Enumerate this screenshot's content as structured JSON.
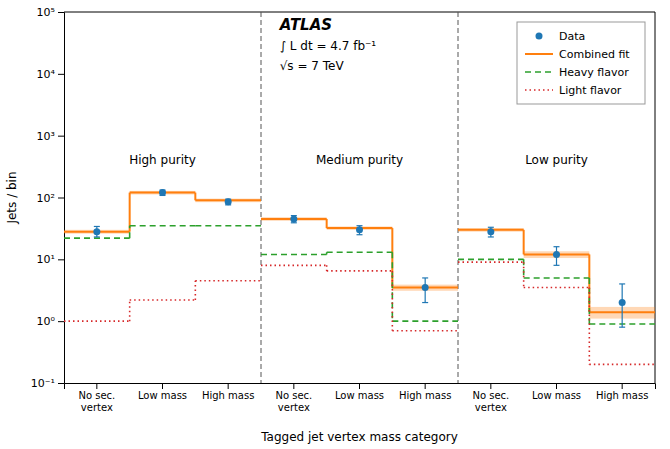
{
  "chart_data": {
    "type": "step",
    "xlabel": "Tagged jet vertex mass category",
    "ylabel": "Jets / bin",
    "log": "y",
    "ylim": [
      0.1,
      100000
    ],
    "yticks": [
      {
        "value": 0.1,
        "label": "10⁻¹"
      },
      {
        "value": 1,
        "label": "10⁰"
      },
      {
        "value": 10,
        "label": "10¹"
      },
      {
        "value": 100,
        "label": "10²"
      },
      {
        "value": 1000,
        "label": "10³"
      },
      {
        "value": 10000,
        "label": "10⁴"
      },
      {
        "value": 100000,
        "label": "10⁵"
      }
    ],
    "grid": false,
    "legend": "upper right",
    "categories": [
      "No sec.\nvertex",
      "Low mass",
      "High mass",
      "No sec.\nvertex",
      "Low mass",
      "High mass",
      "No sec.\nvertex",
      "Low mass",
      "High mass"
    ],
    "groups": [
      {
        "name": "High purity",
        "size": 3
      },
      {
        "name": "Medium purity",
        "size": 3
      },
      {
        "name": "Low purity",
        "size": 3
      }
    ],
    "annotations": [
      "ATLAS",
      "∫ L dt = 4.7 fb⁻¹",
      "√s = 7 TeV"
    ],
    "series": [
      {
        "name": "Data",
        "type": "scatter",
        "marker": "circle",
        "values": [
          28,
          120,
          85,
          45,
          30,
          3.5,
          28,
          12,
          2.0
        ],
        "errors_low": [
          5,
          12,
          9,
          6,
          5,
          1.5,
          5,
          4,
          1.2
        ],
        "errors_high": [
          6,
          12,
          9,
          6,
          5,
          1.5,
          5,
          4,
          2.0
        ]
      },
      {
        "name": "Combined fit",
        "type": "step",
        "line_style": "solid",
        "values": [
          28,
          120,
          90,
          45,
          32,
          3.5,
          30,
          12,
          1.4
        ],
        "band": [
          2,
          8,
          6,
          3,
          2,
          0.4,
          2,
          1.5,
          0.3
        ]
      },
      {
        "name": "Heavy flavor",
        "type": "step",
        "line_style": "dashed",
        "values": [
          22,
          35,
          35,
          12,
          13,
          1.0,
          10,
          5.0,
          0.9
        ]
      },
      {
        "name": "Light flavor",
        "type": "step",
        "line_style": "dotted",
        "values": [
          1.0,
          2.2,
          4.5,
          8.0,
          6.5,
          0.7,
          9.0,
          3.5,
          0.2
        ]
      }
    ]
  }
}
